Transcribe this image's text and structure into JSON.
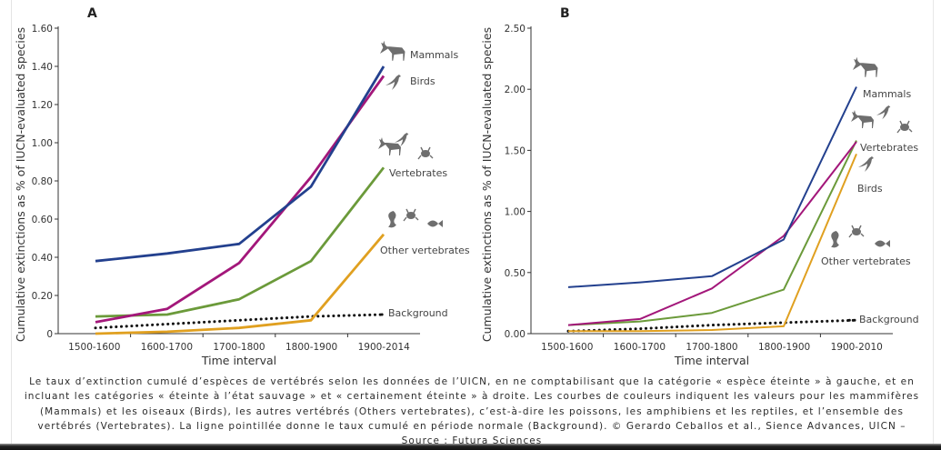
{
  "chart_data": [
    {
      "type": "line",
      "panel": "A",
      "title": "A",
      "xlabel": "Time interval",
      "ylabel": "Cumulative extinctions as % of IUCN-evaluated species",
      "categories": [
        "1500-1600",
        "1600-1700",
        "1700-1800",
        "1800-1900",
        "1900-2014"
      ],
      "yticks": [
        "0",
        "0.20",
        "0.40",
        "0.60",
        "0.80",
        "1.00",
        "1.20",
        "1.40",
        "1.60"
      ],
      "ylim": [
        0,
        1.6
      ],
      "grid": false,
      "series": [
        {
          "name": "Mammals",
          "color": "#23408e",
          "style": "solid",
          "values": [
            0.38,
            0.42,
            0.47,
            0.77,
            1.4
          ]
        },
        {
          "name": "Birds",
          "color": "#a3177a",
          "style": "solid",
          "values": [
            0.06,
            0.13,
            0.37,
            0.82,
            1.35
          ]
        },
        {
          "name": "Vertebrates",
          "color": "#6b9a3a",
          "style": "solid",
          "values": [
            0.09,
            0.1,
            0.18,
            0.38,
            0.87
          ]
        },
        {
          "name": "Other vertebrates",
          "color": "#e0a020",
          "style": "solid",
          "values": [
            0.0,
            0.01,
            0.03,
            0.07,
            0.52
          ]
        },
        {
          "name": "Background",
          "color": "#111111",
          "style": "dotted",
          "values": [
            0.03,
            0.05,
            0.07,
            0.09,
            0.1
          ]
        }
      ],
      "labels": {
        "Mammals": "Mammals",
        "Birds": "Birds",
        "Vertebrates": "Vertebrates",
        "Other vertebrates": "Other vertebrates",
        "Background": "Background"
      }
    },
    {
      "type": "line",
      "panel": "B",
      "title": "B",
      "xlabel": "Time interval",
      "ylabel": "Cumulative extinctions as % of IUCN-evaluated species",
      "categories": [
        "1500-1600",
        "1600-1700",
        "1700-1800",
        "1800-1900",
        "1900-2010"
      ],
      "yticks": [
        "0.00",
        "0.50",
        "1.00",
        "1.50",
        "2.00",
        "2.50"
      ],
      "ylim": [
        0,
        2.5
      ],
      "grid": false,
      "series": [
        {
          "name": "Mammals",
          "color": "#23408e",
          "style": "solid",
          "values": [
            0.38,
            0.42,
            0.47,
            0.77,
            2.02
          ]
        },
        {
          "name": "Birds",
          "color": "#a3177a",
          "style": "solid",
          "values": [
            0.07,
            0.12,
            0.37,
            0.8,
            1.57
          ]
        },
        {
          "name": "Vertebrates",
          "color": "#6b9a3a",
          "style": "solid",
          "values": [
            0.07,
            0.1,
            0.17,
            0.36,
            1.58
          ]
        },
        {
          "name": "Other vertebrates",
          "color": "#e0a020",
          "style": "solid",
          "values": [
            0.02,
            0.02,
            0.03,
            0.06,
            1.47
          ]
        },
        {
          "name": "Background",
          "color": "#111111",
          "style": "dotted",
          "values": [
            0.02,
            0.04,
            0.07,
            0.09,
            0.11
          ]
        }
      ],
      "labels": {
        "Mammals": "Mammals",
        "Birds": "Birds",
        "Vertebrates": "Vertebrates",
        "Other vertebrates": "Other vertebrates",
        "Background": "Background"
      }
    }
  ],
  "caption": {
    "text": "Le taux d’extinction cumulé d’espèces de vertébrés selon les données de l’UICN, en ne comptabilisant que la catégorie « espèce éteinte » à gauche, et en incluant les catégories « éteinte à l’état sauvage » et « certainement éteinte » à droite. Les courbes de couleurs indiquent les valeurs pour les mammifères (Mammals) et les oiseaux (Birds), les autres vertébrés (Others vertebrates), c’est-à-dire les poissons, les amphibiens et les reptiles, et l’ensemble des vertébrés (Vertebrates). La ligne pointillée donne le taux cumulé en période normale (Background). © Gerardo Ceballos et al., Sience Advances, UICN –",
    "source": "Source : Futura Sciences"
  }
}
